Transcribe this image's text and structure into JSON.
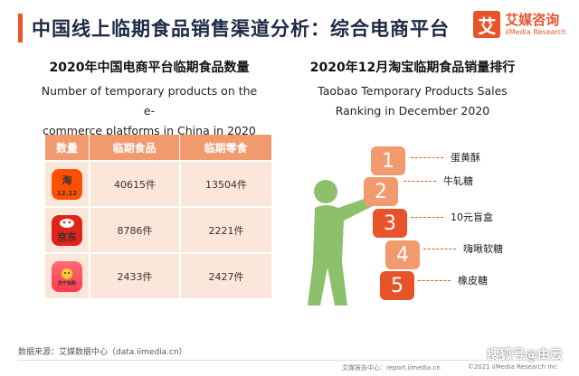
{
  "header": {
    "title": "中国线上临期食品销售渠道分析：综合电商平台",
    "logo_mark": "艾",
    "logo_cn": "艾媒咨询",
    "logo_en": "iiMedia Research"
  },
  "left_panel": {
    "title_cn": "2020年中国电商平台临期食品数量",
    "title_en_line1": "Number of temporary products on the e-",
    "title_en_line2": "commerce platforms in China in 2020",
    "table": {
      "headers": [
        "数量",
        "临期食品",
        "临期零食"
      ],
      "rows": [
        {
          "platform_icon": "taobao-icon",
          "icon_text": "淘",
          "icon_sub": "12.12",
          "food": "40615件",
          "snack": "13504件"
        },
        {
          "platform_icon": "jd-icon",
          "icon_text": "京东",
          "icon_sub": "",
          "food": "8786件",
          "snack": "2221件"
        },
        {
          "platform_icon": "suning-icon",
          "icon_text": "苏宁易购",
          "icon_sub": "",
          "food": "2433件",
          "snack": "2427件"
        }
      ]
    }
  },
  "right_panel": {
    "title_cn": "2020年12月淘宝临期食品销量排行",
    "title_en_line1": "Taobao Temporary Products Sales",
    "title_en_line2": "Ranking in December 2020",
    "ranking": [
      {
        "rank": "1",
        "name": "蛋黄酥"
      },
      {
        "rank": "2",
        "name": "牛轧糖"
      },
      {
        "rank": "3",
        "name": "10元盲盒"
      },
      {
        "rank": "4",
        "name": "嗨啾软糖"
      },
      {
        "rank": "5",
        "name": "橡皮糖"
      }
    ]
  },
  "footer": {
    "source": "数据来源：艾媒数据中心（data.iimedia.cn）",
    "report": "艾媒报告中心：report.iimedia.cn",
    "copyright": "©2021  iiMedia Research  Inc",
    "watermark": "搜狐号@由云"
  },
  "colors": {
    "accent": "#e8542a",
    "light_accent": "#f19a6e",
    "row_bg": "#fbe6da",
    "person": "#8cc06a"
  }
}
